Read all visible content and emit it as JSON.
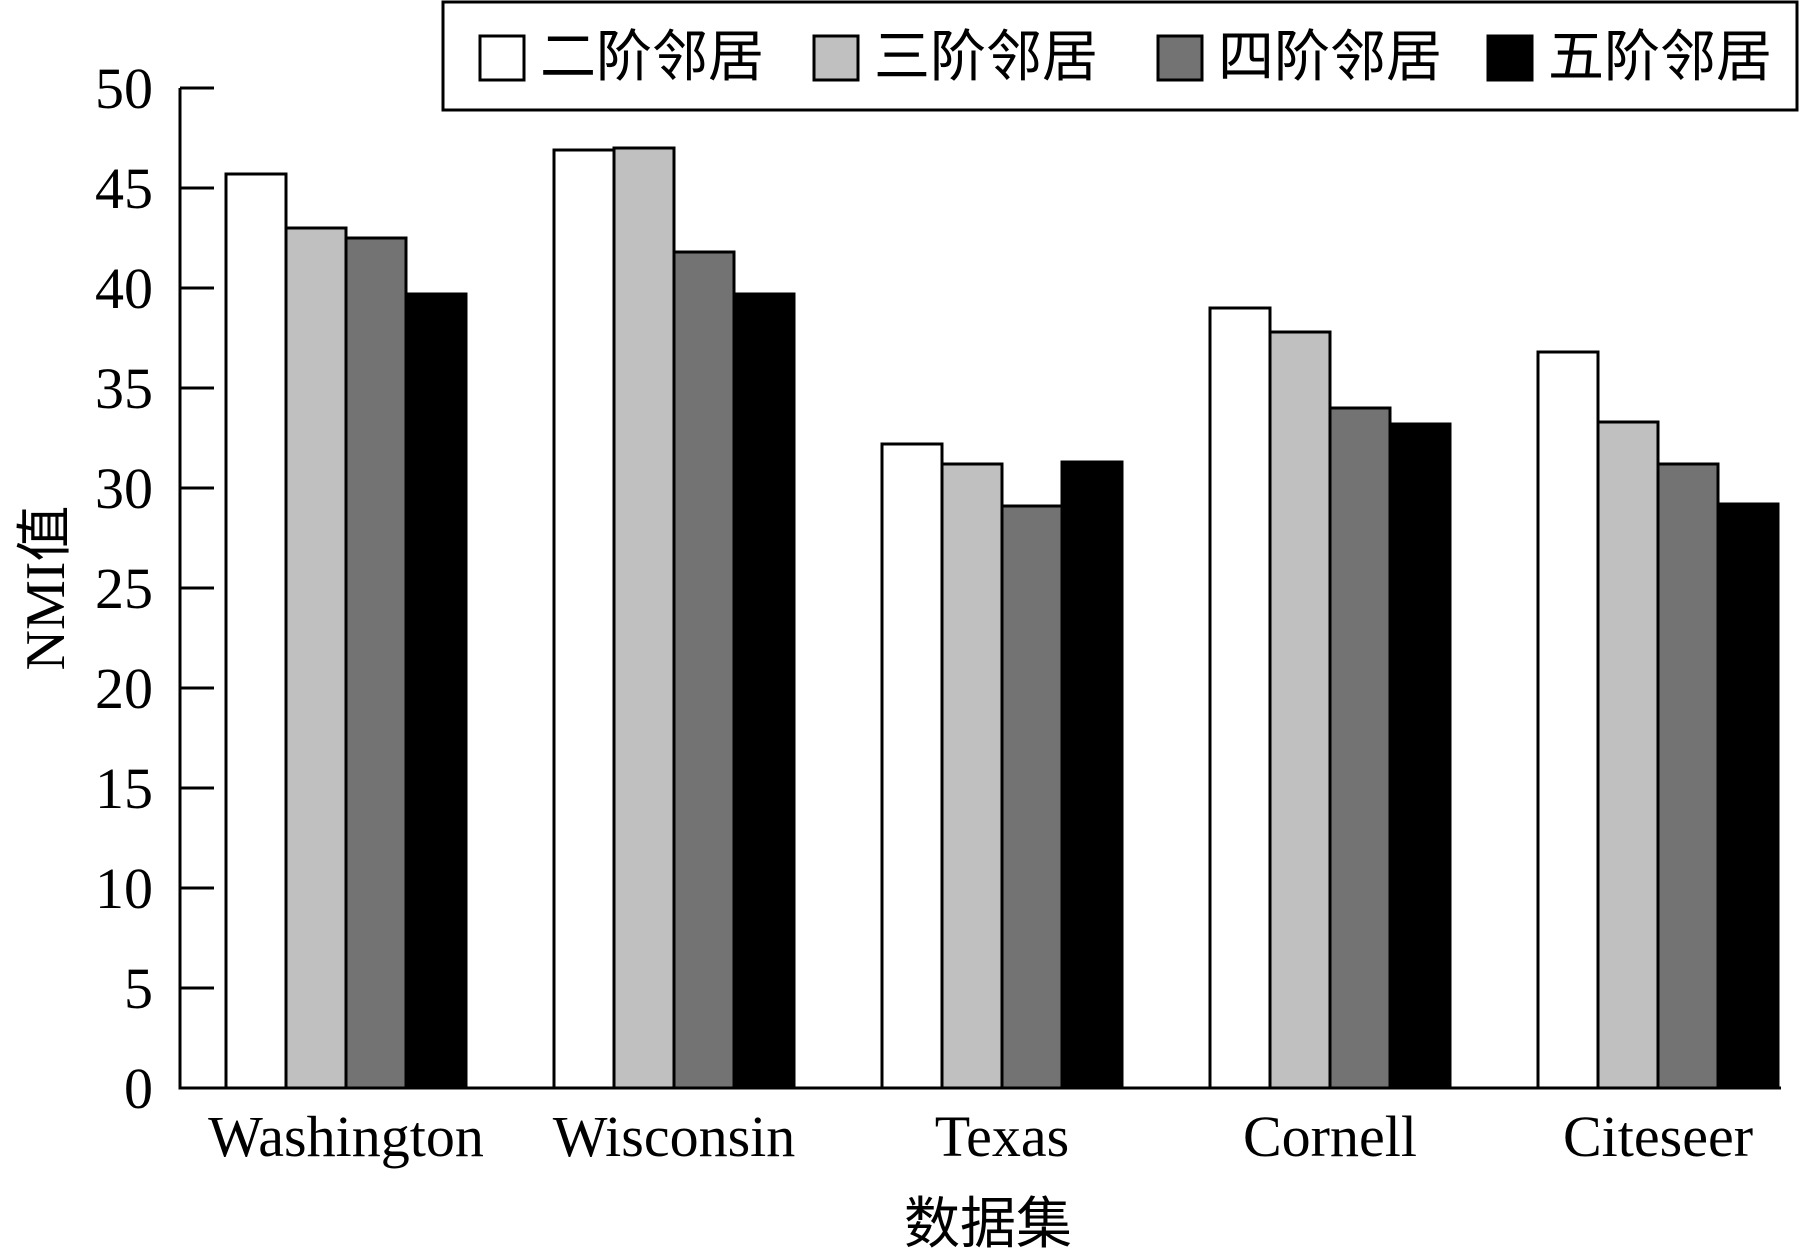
{
  "chart_data": {
    "type": "bar",
    "categories": [
      "Washington",
      "Wisconsin",
      "Texas",
      "Cornell",
      "Citeseer"
    ],
    "series": [
      {
        "name": "二阶邻居",
        "color": "#ffffff",
        "values": [
          45.7,
          46.9,
          32.2,
          39.0,
          36.8
        ]
      },
      {
        "name": "三阶邻居",
        "color": "#c0c0c0",
        "values": [
          43.0,
          47.0,
          31.2,
          37.8,
          33.3
        ]
      },
      {
        "name": "四阶邻居",
        "color": "#737373",
        "values": [
          42.5,
          41.8,
          29.1,
          34.0,
          31.2
        ]
      },
      {
        "name": "五阶邻居",
        "color": "#000000",
        "values": [
          39.7,
          39.7,
          31.3,
          33.2,
          29.2
        ]
      }
    ],
    "xlabel": "数据集",
    "ylabel": "NMI值",
    "ylim": [
      0,
      50
    ],
    "yticks": [
      "0",
      "5",
      "10",
      "15",
      "20",
      "25",
      "30",
      "35",
      "40",
      "45",
      "50"
    ],
    "grid": false,
    "legend_position": "top-right"
  }
}
